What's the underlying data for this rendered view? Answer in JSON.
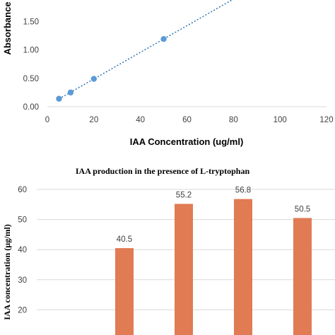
{
  "chart_data": [
    {
      "type": "scatter",
      "title": "",
      "xlabel": "IAA Concentration (ug/ml)",
      "ylabel": "Absorbance",
      "xlim": [
        0,
        120
      ],
      "ylim": [
        0,
        2.0
      ],
      "x_ticks": [
        "0",
        "20",
        "40",
        "60",
        "80",
        "100",
        "120"
      ],
      "y_ticks": [
        "0.00",
        "0.50",
        "1.00",
        "1.50"
      ],
      "series": [
        {
          "points": [
            {
              "x": 5,
              "y": 0.14
            },
            {
              "x": 10,
              "y": 0.25
            },
            {
              "x": 20,
              "y": 0.49
            },
            {
              "x": 50,
              "y": 1.19
            }
          ]
        }
      ],
      "trendline": {
        "style": "dotted",
        "linear": true
      },
      "marker_color": "#5b9bd5",
      "grid": false
    },
    {
      "type": "bar",
      "title": "IAA production in the presence of L-tryptophan",
      "xlabel": "",
      "ylabel": "IAA concentration (µg/ml)",
      "ylim": [
        10,
        60
      ],
      "y_ticks": [
        "20",
        "30",
        "40",
        "50",
        "60"
      ],
      "values": [
        40.5,
        55.2,
        56.8,
        50.5
      ],
      "data_labels": [
        "40.5",
        "55.2",
        "56.8",
        "50.5"
      ],
      "bar_color": "#e07b54",
      "grid": true
    }
  ]
}
